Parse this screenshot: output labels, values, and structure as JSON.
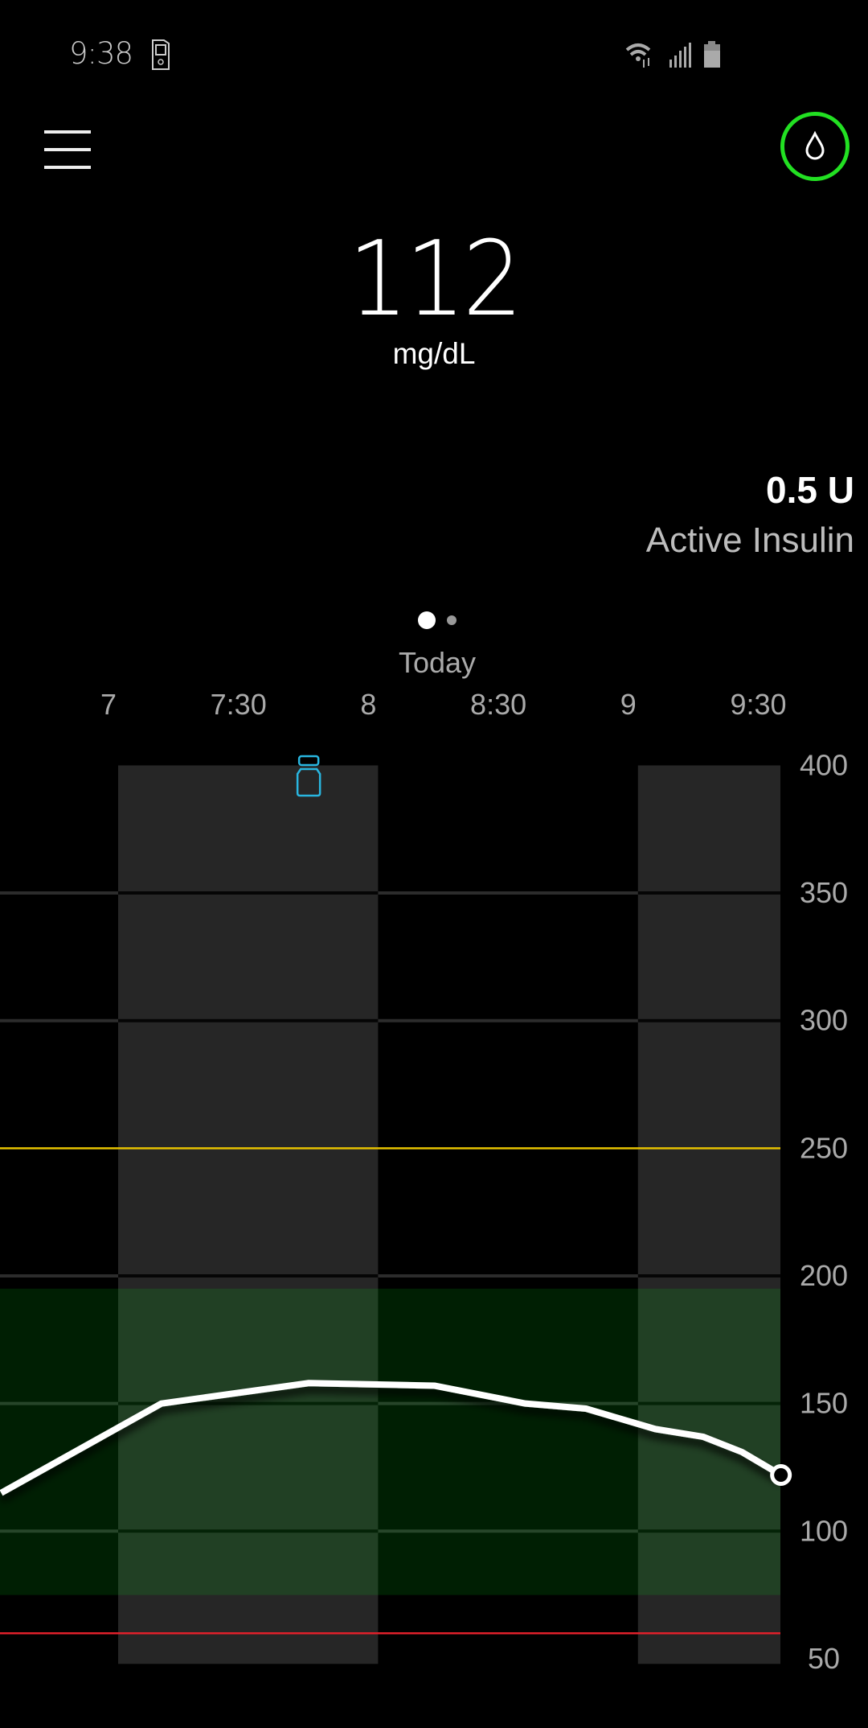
{
  "status_bar": {
    "time": "9:38",
    "icons": [
      "pump-device-icon",
      "wifi-icon",
      "signal-icon",
      "battery-icon"
    ]
  },
  "header": {
    "menu_icon": "hamburger-menu-icon",
    "status_icon": "blood-drop-icon",
    "status_ring_color": "#22e022"
  },
  "glucose": {
    "value": "112",
    "unit": "mg/dL"
  },
  "active_insulin": {
    "value": "0.5 U",
    "label": "Active Insulin"
  },
  "pager": {
    "pages": 2,
    "active": 0
  },
  "chart_label": "Today",
  "chart_data": {
    "type": "line",
    "x_tick_labels": [
      "7",
      "7:30",
      "8",
      "8:30",
      "9",
      "9:30"
    ],
    "x_ticks": [
      "07:00",
      "07:30",
      "08:00",
      "08:30",
      "09:00",
      "09:30"
    ],
    "y_tick_labels": [
      "400",
      "350",
      "300",
      "250",
      "200",
      "150",
      "100",
      "50"
    ],
    "ylim": [
      50,
      400
    ],
    "xlim": [
      "06:33",
      "09:33"
    ],
    "series": [
      {
        "points": [
          {
            "t": "06:33",
            "v": 115
          },
          {
            "t": "07:10",
            "v": 150
          },
          {
            "t": "07:44",
            "v": 158
          },
          {
            "t": "08:13",
            "v": 157
          },
          {
            "t": "08:34",
            "v": 150
          },
          {
            "t": "08:48",
            "v": 148
          },
          {
            "t": "09:04",
            "v": 140
          },
          {
            "t": "09:15",
            "v": 137
          },
          {
            "t": "09:24",
            "v": 131
          },
          {
            "t": "09:33",
            "v": 122
          }
        ],
        "color": "#ffffff"
      }
    ],
    "target_range": {
      "low": 75,
      "high": 195,
      "color": "#00ee17"
    },
    "high_alert": {
      "value": 250,
      "color": "#e6c200"
    },
    "low_alert": {
      "value": 60,
      "color": "#e0202a"
    },
    "shaded_hours": [
      [
        "07:00",
        "08:00"
      ],
      [
        "09:00",
        "09:33"
      ]
    ],
    "events": [
      {
        "t": "07:44",
        "type": "insulin-bolus",
        "icon": "insulin-vial-icon",
        "color": "#29b6e0"
      }
    ],
    "grid": true
  }
}
